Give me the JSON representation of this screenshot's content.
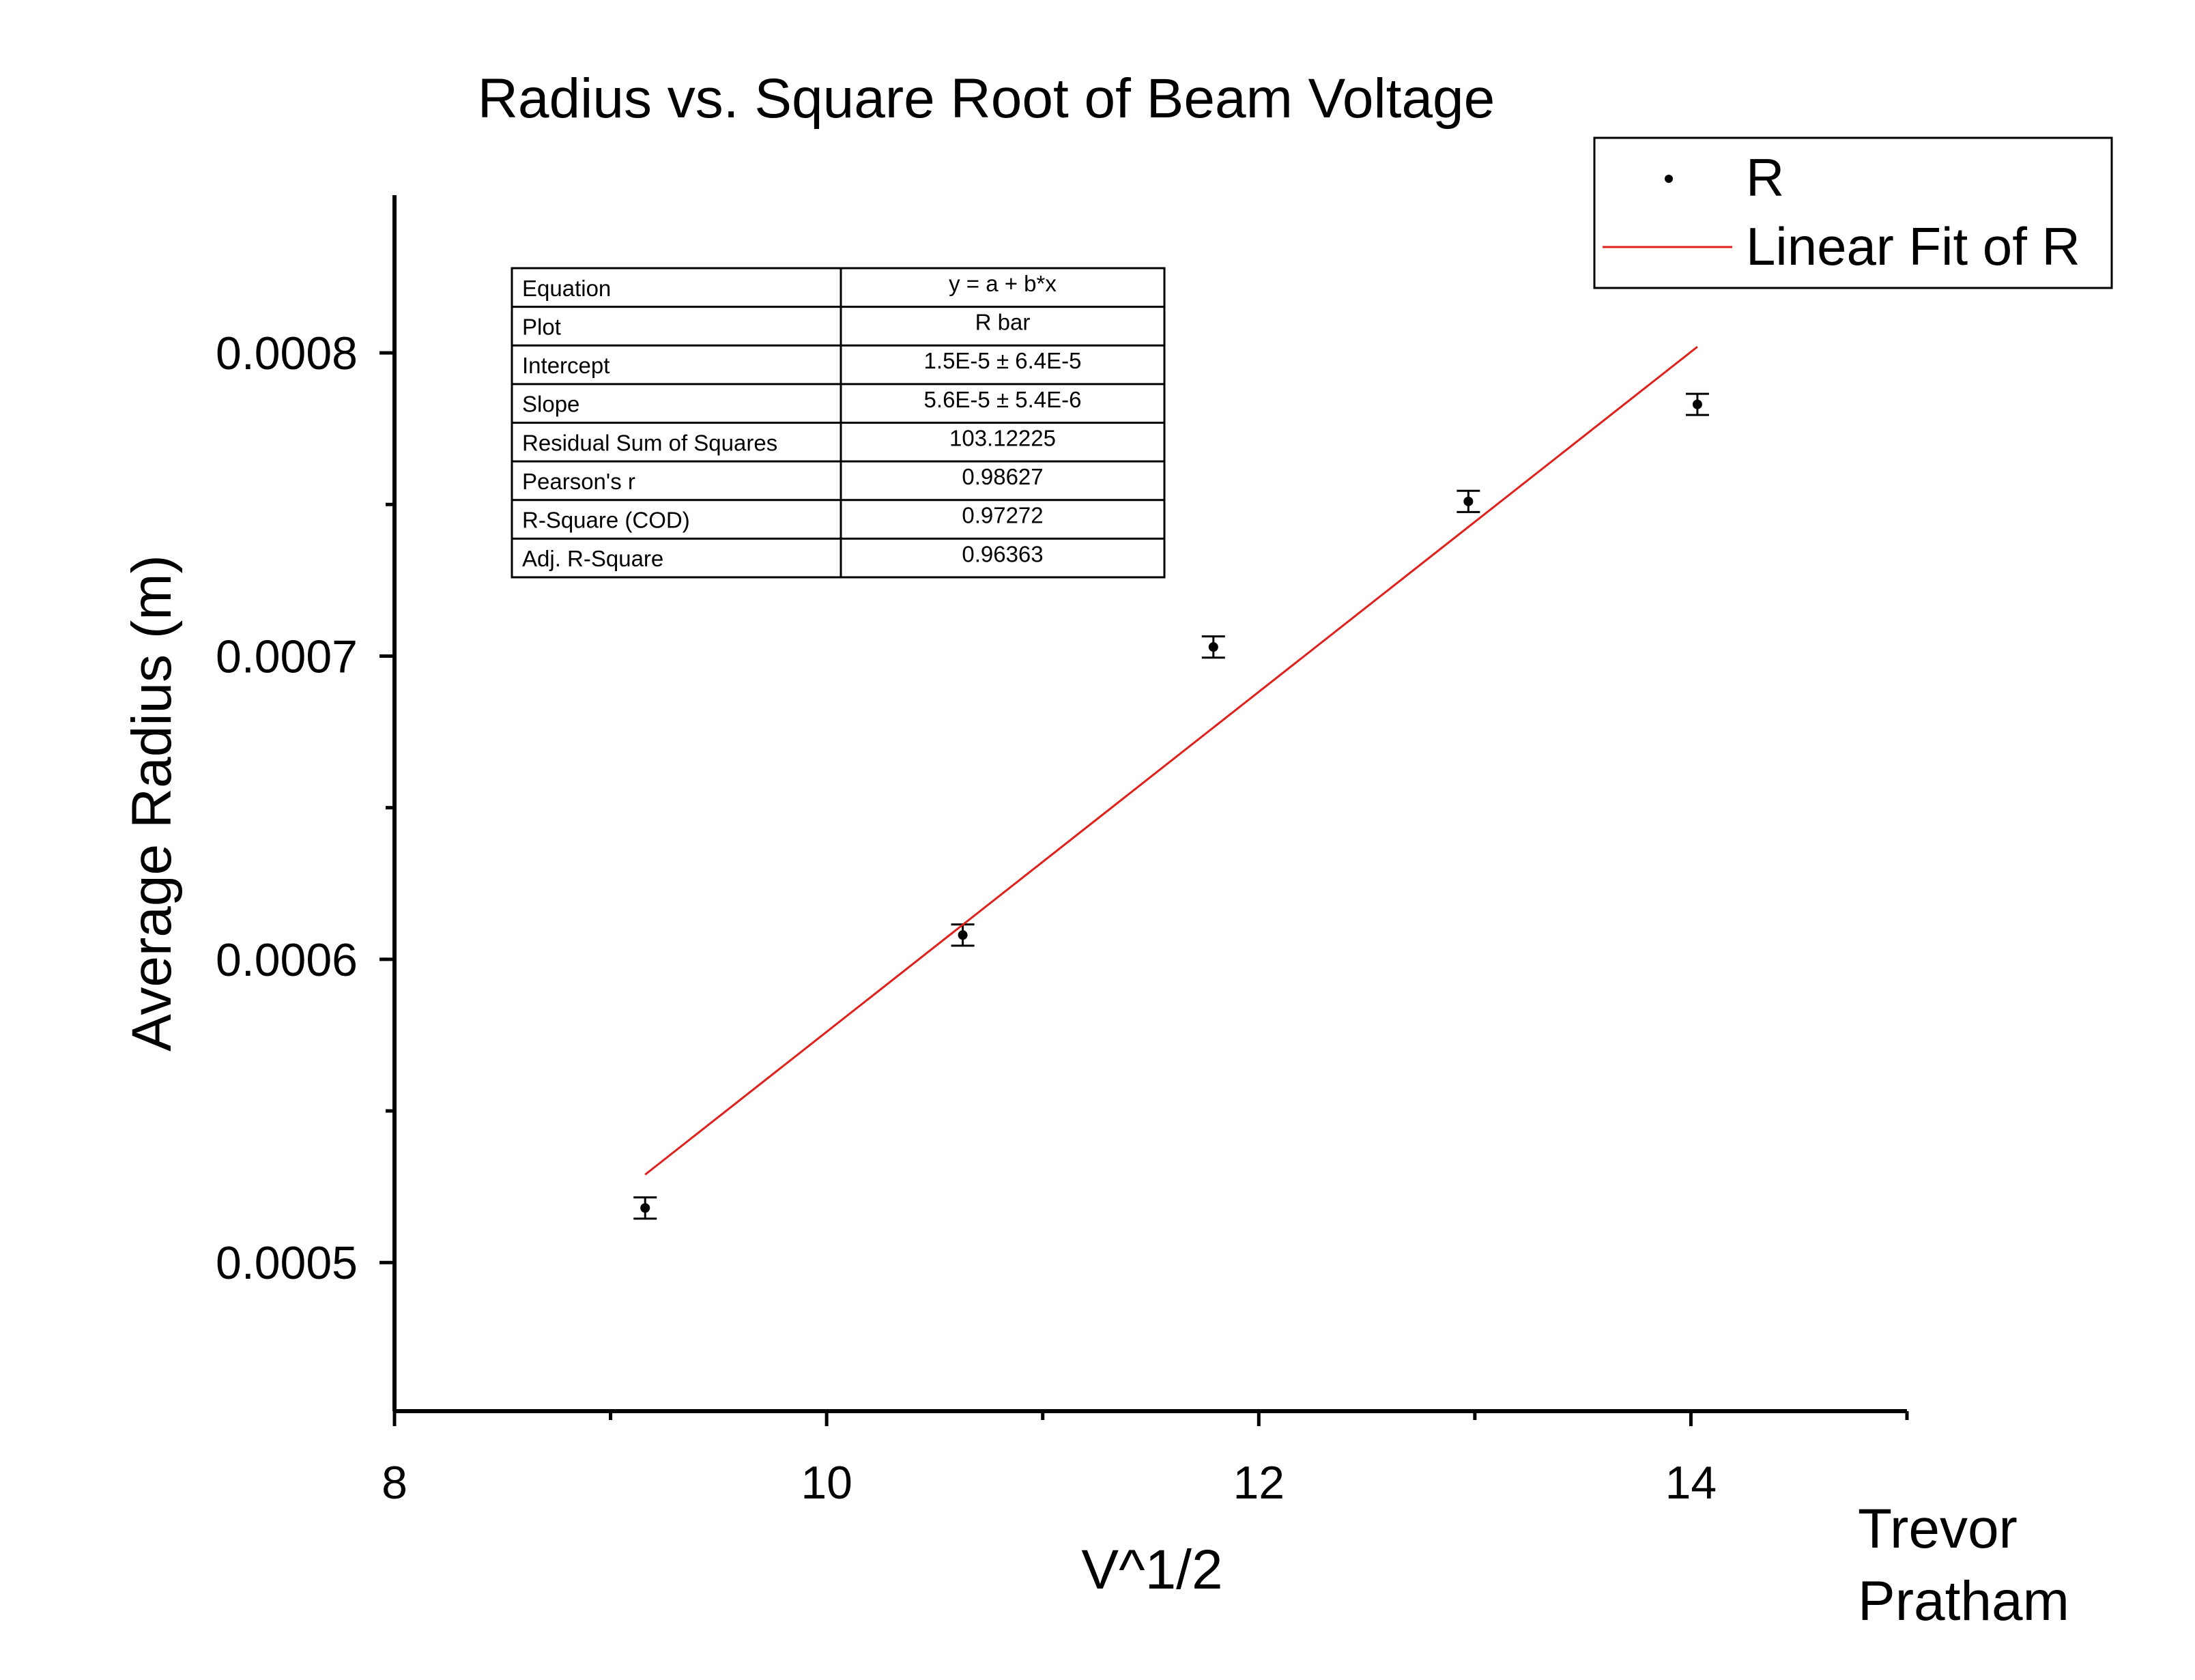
{
  "chart_data": {
    "type": "scatter",
    "title": "Radius vs. Square Root of Beam Voltage",
    "xlabel": "V^1/2",
    "ylabel": "Average Radius (m)",
    "xlim": [
      8,
      15
    ],
    "ylim": [
      0.000451,
      0.000852
    ],
    "x_ticks": [
      8,
      10,
      12,
      14
    ],
    "x_tick_labels": [
      "8",
      "10",
      "12",
      "14"
    ],
    "x_minor_ticks": [
      9,
      11,
      13,
      15
    ],
    "y_ticks": [
      0.0005,
      0.0006,
      0.0007,
      0.0008
    ],
    "y_tick_labels": [
      "0.0005",
      "0.0006",
      "0.0007",
      "0.0008"
    ],
    "y_minor_ticks": [
      0.00055,
      0.00065,
      0.00075
    ],
    "grid": false,
    "legend_position": "top-right",
    "series": [
      {
        "name": "R",
        "kind": "points",
        "color": "#000000",
        "x": [
          9.16,
          10.63,
          11.79,
          12.97,
          14.03
        ],
        "y": [
          0.000518,
          0.000608,
          0.000703,
          0.000751,
          0.000783
        ],
        "error": [
          3.5e-06,
          3.5e-06,
          3.5e-06,
          3.5e-06,
          3.5e-06
        ]
      },
      {
        "name": "Linear Fit of R",
        "kind": "line",
        "color": "#e0201a",
        "x": [
          9.16,
          14.03
        ],
        "y": [
          0.000529,
          0.000802
        ]
      }
    ],
    "fit_table": {
      "rows": [
        {
          "label": "Equation",
          "value": "y = a + b*x"
        },
        {
          "label": "Plot",
          "value": "R bar"
        },
        {
          "label": "Intercept",
          "value": "1.5E-5 ± 6.4E-5"
        },
        {
          "label": "Slope",
          "value": "5.6E-5 ± 5.4E-6"
        },
        {
          "label": "Residual Sum of Squares",
          "value": "103.12225"
        },
        {
          "label": "Pearson's r",
          "value": "0.98627"
        },
        {
          "label": "R-Square (COD)",
          "value": "0.97272"
        },
        {
          "label": "Adj. R-Square",
          "value": "0.96363"
        }
      ]
    },
    "annotation": [
      "Trevor",
      "Pratham"
    ]
  }
}
